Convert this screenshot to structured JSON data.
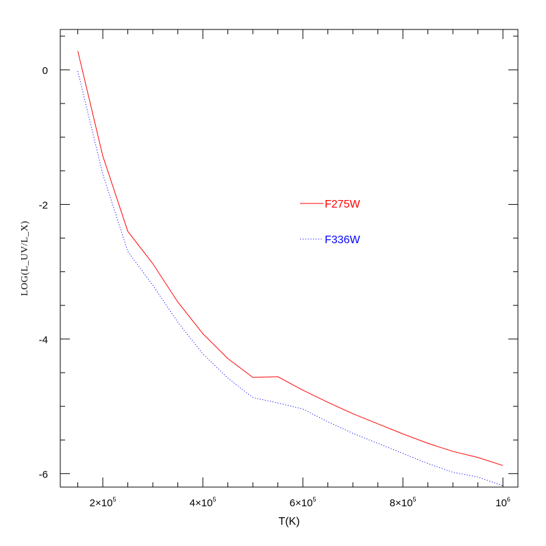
{
  "chart_data": {
    "type": "line",
    "xlabel": "T(K)",
    "ylabel": "LOG(L_UV/L_X)",
    "xlim": [
      115000,
      1030000
    ],
    "ylim": [
      -6.2,
      0.6
    ],
    "x_ticks": [
      {
        "value": 200000,
        "mantissa": "2×10",
        "exp": "5"
      },
      {
        "value": 400000,
        "mantissa": "4×10",
        "exp": "5"
      },
      {
        "value": 600000,
        "mantissa": "6×10",
        "exp": "5"
      },
      {
        "value": 800000,
        "mantissa": "8×10",
        "exp": "5"
      },
      {
        "value": 1000000,
        "mantissa": "10",
        "exp": "6"
      }
    ],
    "x_minor_step": 50000,
    "y_ticks": [
      {
        "value": 0,
        "label": "0"
      },
      {
        "value": -2,
        "label": "-2"
      },
      {
        "value": -4,
        "label": "-4"
      },
      {
        "value": -6,
        "label": "-6"
      }
    ],
    "y_minor_step": 0.5,
    "grid": false,
    "legend_position": "center-right",
    "series": [
      {
        "name": "F275W",
        "color": "#ff0000",
        "dash": "solid",
        "x": [
          150000,
          200000,
          250000,
          300000,
          350000,
          400000,
          450000,
          500000,
          550000,
          600000,
          650000,
          700000,
          750000,
          800000,
          850000,
          900000,
          950000,
          1000000
        ],
        "y": [
          0.28,
          -1.28,
          -2.4,
          -2.88,
          -3.45,
          -3.92,
          -4.29,
          -4.57,
          -4.56,
          -4.76,
          -4.94,
          -5.11,
          -5.26,
          -5.41,
          -5.55,
          -5.67,
          -5.76,
          -5.88
        ]
      },
      {
        "name": "F336W",
        "color": "#0000ff",
        "dash": "dotted",
        "x": [
          150000,
          200000,
          250000,
          300000,
          350000,
          400000,
          450000,
          500000,
          550000,
          600000,
          650000,
          700000,
          750000,
          800000,
          850000,
          900000,
          950000,
          1000000
        ],
        "y": [
          -0.02,
          -1.55,
          -2.7,
          -3.2,
          -3.75,
          -4.22,
          -4.58,
          -4.87,
          -4.95,
          -5.04,
          -5.23,
          -5.4,
          -5.55,
          -5.7,
          -5.85,
          -5.98,
          -6.05,
          -6.18
        ]
      }
    ]
  }
}
